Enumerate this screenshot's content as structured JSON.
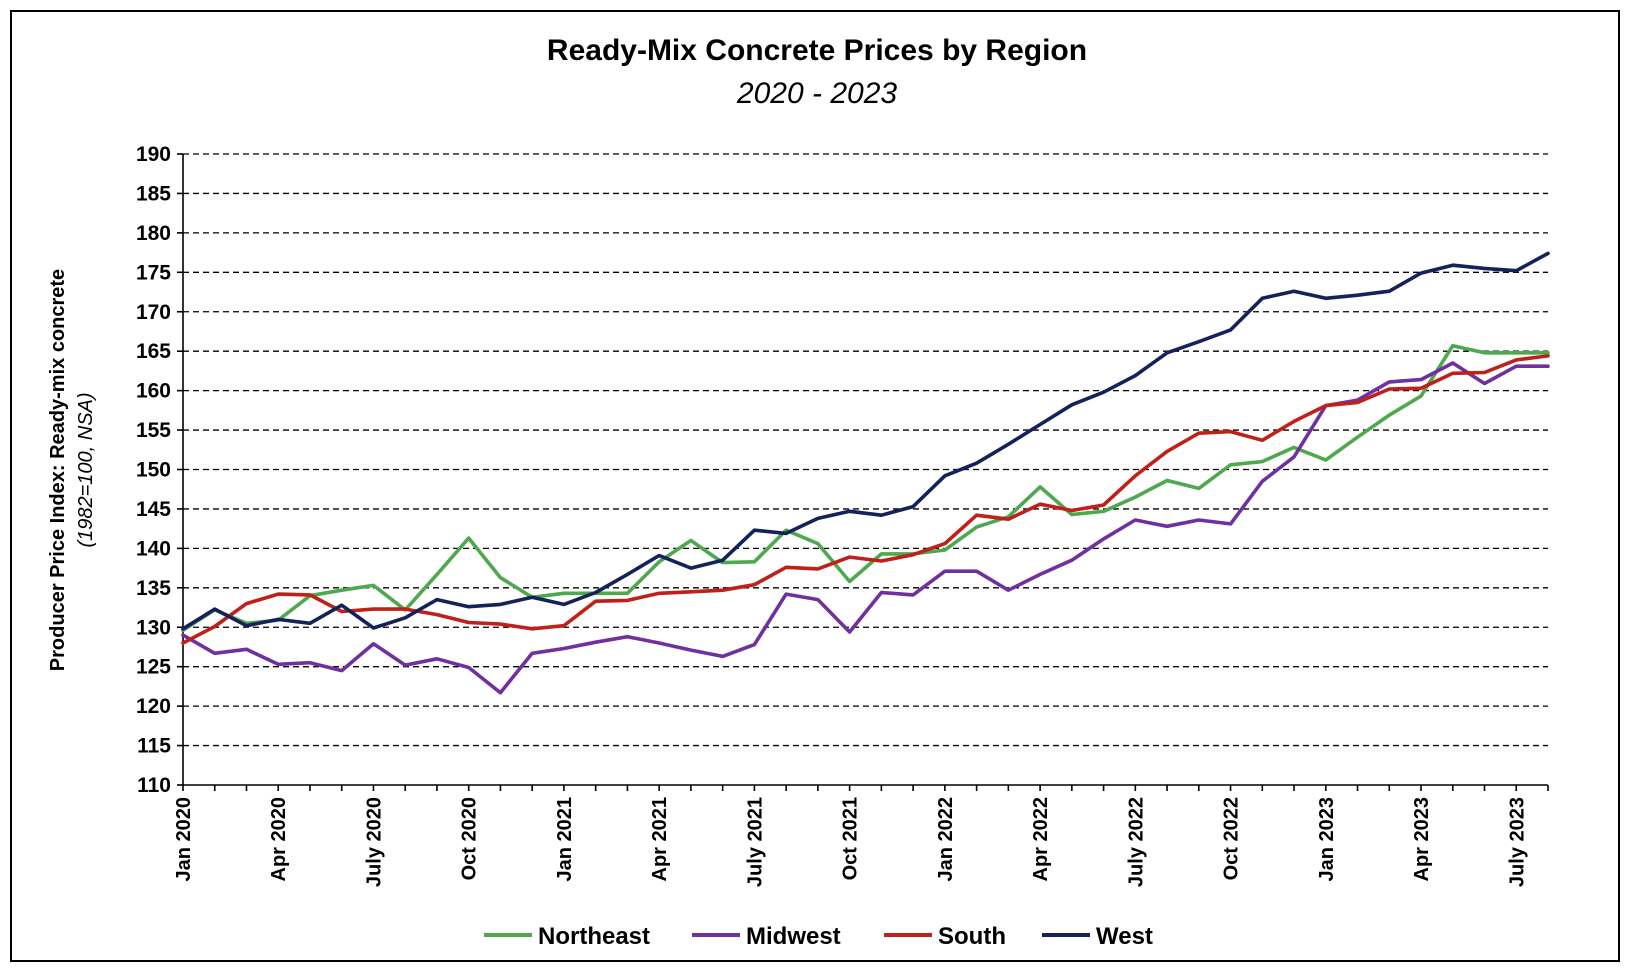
{
  "chart_data": {
    "type": "line",
    "title": "Ready-Mix Concrete Prices by Region",
    "subtitle": "2020 - 2023",
    "ylabel": "Producer Price Index: Ready-mix concrete",
    "ylabel_note": "(1982=100, NSA)",
    "xlabel": "",
    "ylim": [
      110,
      190
    ],
    "ytick_step": 5,
    "grid": "horizontal dashed",
    "legend_position": "bottom",
    "x": [
      "Jan 2020",
      "Feb 2020",
      "Mar 2020",
      "Apr 2020",
      "May 2020",
      "Jun 2020",
      "July 2020",
      "Aug 2020",
      "Sep 2020",
      "Oct 2020",
      "Nov 2020",
      "Dec 2020",
      "Jan 2021",
      "Feb 2021",
      "Mar 2021",
      "Apr 2021",
      "May 2021",
      "Jun 2021",
      "July 2021",
      "Aug 2021",
      "Sep 2021",
      "Oct 2021",
      "Nov 2021",
      "Dec 2021",
      "Jan 2022",
      "Feb 2022",
      "Mar 2022",
      "Apr 2022",
      "May 2022",
      "Jun 2022",
      "July 2022",
      "Aug 2022",
      "Sep 2022",
      "Oct 2022",
      "Nov 2022",
      "Dec 2022",
      "Jan 2023",
      "Feb 2023",
      "Mar 2023",
      "Apr 2023",
      "May 2023",
      "Jun 2023",
      "July 2023",
      "Aug 2023"
    ],
    "x_tick_labels": [
      "Jan 2020",
      "Apr 2020",
      "July 2020",
      "Oct 2020",
      "Jan 2021",
      "Apr 2021",
      "July 2021",
      "Oct 2021",
      "Jan 2022",
      "Apr 2022",
      "July 2022",
      "Oct 2022",
      "Jan 2023",
      "Apr 2023",
      "July 2023"
    ],
    "series": [
      {
        "name": "Northeast",
        "color": "#4ea84e",
        "values": [
          129.6,
          132.2,
          130.5,
          130.9,
          134.0,
          134.7,
          135.3,
          132.2,
          136.7,
          141.3,
          136.3,
          133.8,
          134.3,
          134.3,
          134.3,
          138.3,
          141.0,
          138.2,
          138.3,
          142.3,
          140.6,
          135.8,
          139.3,
          139.3,
          139.8,
          142.7,
          144.0,
          147.8,
          144.3,
          144.7,
          146.5,
          148.6,
          147.6,
          150.6,
          151.0,
          152.8,
          151.2,
          154.1,
          156.9,
          159.3,
          165.7,
          164.8,
          164.8,
          164.8
        ]
      },
      {
        "name": "Midwest",
        "color": "#7030a0",
        "values": [
          129.0,
          126.7,
          127.2,
          125.3,
          125.5,
          124.5,
          127.9,
          125.2,
          126.0,
          124.9,
          121.7,
          126.7,
          127.3,
          128.1,
          128.8,
          128.0,
          127.1,
          126.3,
          127.8,
          134.2,
          133.5,
          129.4,
          134.4,
          134.1,
          137.1,
          137.1,
          134.7,
          136.7,
          138.5,
          141.2,
          143.6,
          142.8,
          143.6,
          143.1,
          148.5,
          151.6,
          158.1,
          158.8,
          161.1,
          161.4,
          163.5,
          160.9,
          163.1,
          163.1
        ]
      },
      {
        "name": "South",
        "color": "#c0201a",
        "values": [
          128.0,
          130.1,
          133.0,
          134.2,
          134.1,
          132.0,
          132.3,
          132.3,
          131.6,
          130.6,
          130.4,
          129.8,
          130.2,
          133.3,
          133.4,
          134.3,
          134.5,
          134.7,
          135.4,
          137.6,
          137.4,
          138.9,
          138.4,
          139.2,
          140.6,
          144.2,
          143.7,
          145.6,
          144.8,
          145.5,
          149.2,
          152.3,
          154.6,
          154.8,
          153.7,
          156.1,
          158.1,
          158.5,
          160.2,
          160.3,
          162.2,
          162.3,
          163.9,
          164.4
        ]
      },
      {
        "name": "West",
        "color": "#14215a",
        "values": [
          129.8,
          132.3,
          130.2,
          131.0,
          130.5,
          132.8,
          129.9,
          131.2,
          133.5,
          132.6,
          132.9,
          133.8,
          132.9,
          134.4,
          136.7,
          139.1,
          137.5,
          138.5,
          142.3,
          141.9,
          143.8,
          144.7,
          144.2,
          145.3,
          149.2,
          150.8,
          153.2,
          155.7,
          158.2,
          159.8,
          161.9,
          164.8,
          166.2,
          167.7,
          171.7,
          172.6,
          171.7,
          172.1,
          172.6,
          174.9,
          175.9,
          175.5,
          175.2,
          177.4
        ]
      }
    ]
  }
}
